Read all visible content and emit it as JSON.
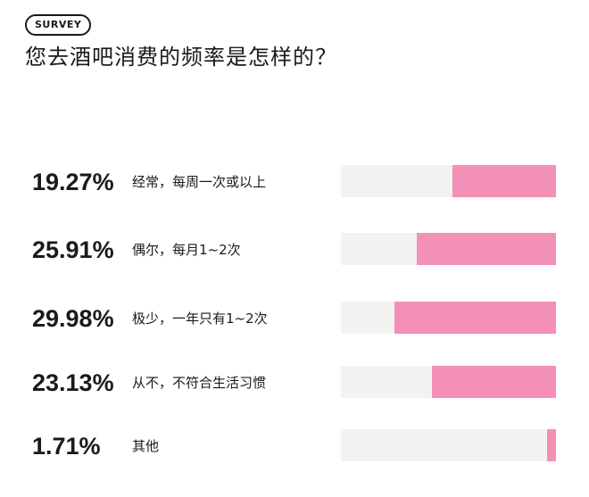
{
  "badge": "SURVEY",
  "title": "您去酒吧消费的频率是怎样的？",
  "colors": {
    "bar_fill": "#f48fb8",
    "bar_track": "#f2f3f1",
    "text": "#1a1a1a"
  },
  "chart_data": {
    "type": "bar",
    "orientation": "horizontal",
    "title": "您去酒吧消费的频率是怎样的？",
    "categories": [
      "经常，每周一次或以上",
      "偶尔，每月1~2次",
      "极少，一年只有1~2次",
      "从不，不符合生活习惯",
      "其他"
    ],
    "values": [
      19.27,
      25.91,
      29.98,
      23.13,
      1.71
    ],
    "value_labels": [
      "19.27%",
      "25.91%",
      "29.98%",
      "23.13%",
      "1.71%"
    ],
    "unit": "%",
    "xlim": [
      0,
      40
    ]
  }
}
